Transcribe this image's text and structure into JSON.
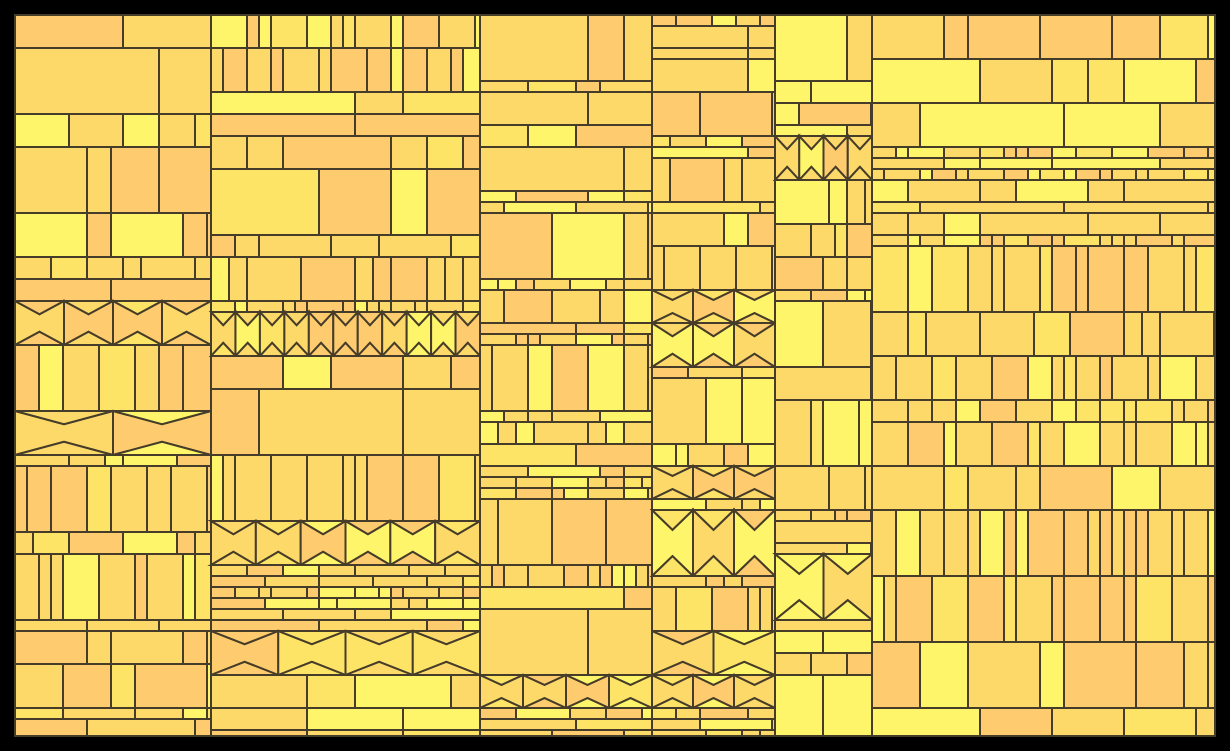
{
  "palette": {
    "background": "#000000",
    "fills": [
      "#fdd96a",
      "#fecc6e",
      "#fef56a",
      "#fde466"
    ],
    "stroke": "#463c2a"
  }
}
